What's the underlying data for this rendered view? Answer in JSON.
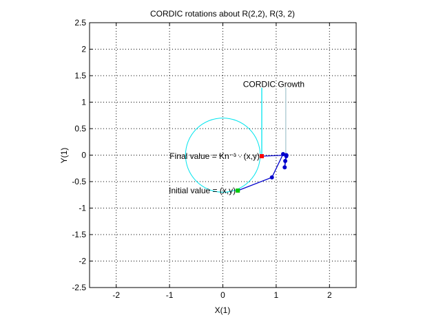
{
  "chart_data": {
    "type": "line",
    "title": "CORDIC rotations about R(2,2), R(3, 2)",
    "xlabel": "X(1)",
    "ylabel": "Y(1)",
    "xlim": [
      -2.5,
      2.5
    ],
    "ylim": [
      -2.5,
      2.5
    ],
    "grid": true,
    "xticks": [
      -2,
      -1,
      0,
      1,
      2
    ],
    "xtick_labels": [
      "-2",
      "-1",
      "0",
      "1",
      "2"
    ],
    "yticks": [
      2.5,
      2,
      1.5,
      1,
      0.5,
      0,
      -0.5,
      -1,
      -1.5,
      -2,
      -2.5
    ],
    "ytick_labels": [
      "2.5",
      "2",
      "1.5",
      "1",
      "0.5",
      "0",
      "-0.5",
      "-1",
      "-1.5",
      "-2",
      "-2.5"
    ],
    "circle": {
      "center": [
        0,
        0
      ],
      "radius": 0.7,
      "color": "#00e5ee"
    },
    "path": {
      "color": "#0000cc",
      "x": [
        0.28,
        0.92,
        1.13,
        1.19,
        1.16,
        1.17,
        1.19,
        0.73
      ],
      "y": [
        -0.67,
        -0.42,
        0.02,
        -0.02,
        -0.23,
        -0.11,
        0.0,
        -0.02
      ]
    },
    "initial_point": {
      "x": 0.28,
      "y": -0.67,
      "color": "#00cc00",
      "label": "Initial value = (x,y)"
    },
    "final_point": {
      "x": 0.73,
      "y": -0.02,
      "color": "#ff0000",
      "label": "Final value = Kn⁻¹ · (x,y)"
    },
    "growth_annotation": {
      "label": "CORDIC Growth",
      "lines": [
        {
          "x": 0.73,
          "y0": -0.02,
          "y1": 1.27,
          "color": "#00e5ee"
        },
        {
          "x": 1.18,
          "y0": 0.0,
          "y1": 1.27,
          "color": "#a8c8d0"
        }
      ]
    }
  }
}
